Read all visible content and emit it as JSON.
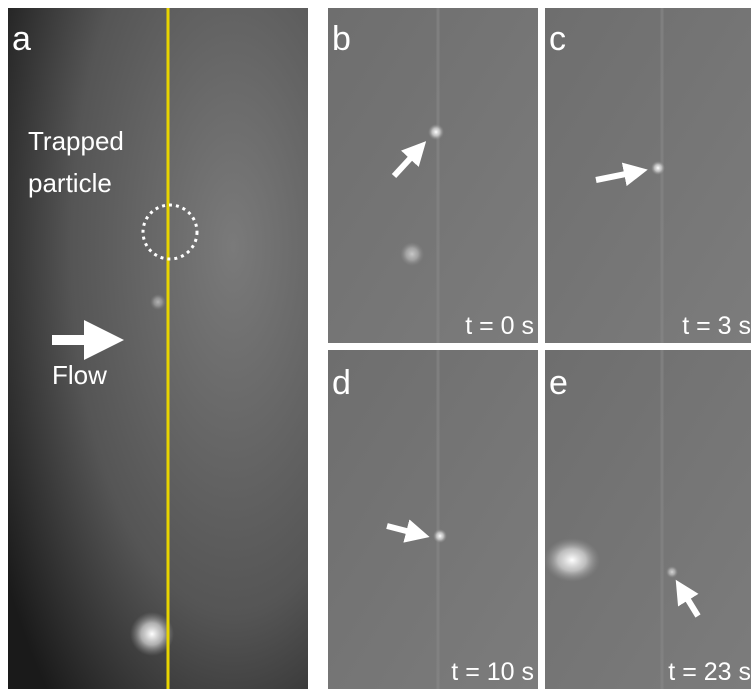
{
  "panels": [
    {
      "label": "a",
      "annotations": [
        "Trapped",
        "particle",
        "Flow"
      ]
    },
    {
      "label": "b",
      "time": "t = 0 s"
    },
    {
      "label": "c",
      "time": "t = 3 s"
    },
    {
      "label": "d",
      "time": "t = 10 s"
    },
    {
      "label": "e",
      "time": "t = 23 s"
    }
  ]
}
